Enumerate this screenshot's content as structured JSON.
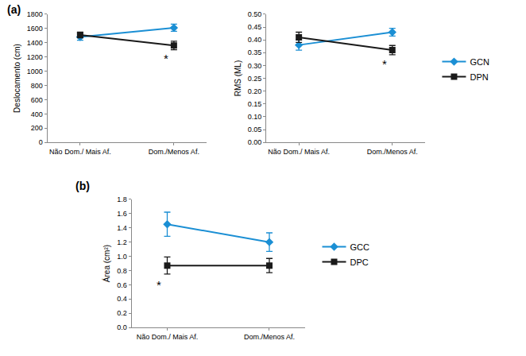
{
  "chart_data": [
    {
      "type": "line",
      "title": "(a)",
      "y_label": "Deslocamento (cm)",
      "categories": [
        "Não Dom./ Mais Af.",
        "Dom./Menos Af."
      ],
      "series": [
        {
          "color": "#1B8FD4",
          "marker": "diamond",
          "values": [
            1480,
            1610
          ],
          "errors": [
            45,
            50
          ]
        },
        {
          "color": "#1a1a1a",
          "marker": "square",
          "values": [
            1510,
            1360
          ],
          "errors": [
            40,
            60
          ]
        }
      ],
      "ylim": [
        0,
        1800
      ],
      "yticks": [
        0,
        200,
        400,
        600,
        800,
        1000,
        1200,
        1400,
        1600,
        1800
      ],
      "annotations": [
        {
          "text": "*",
          "x": 1,
          "y": 1295
        }
      ],
      "grid": false
    },
    {
      "type": "line",
      "y_label": "RMS (ML)",
      "categories": [
        "Não Dom./ Mais Af.",
        "Dom./Menos Af."
      ],
      "series": [
        {
          "name": "GCN",
          "color": "#1B8FD4",
          "marker": "diamond",
          "values": [
            0.38,
            0.43
          ],
          "errors": [
            0.02,
            0.015
          ]
        },
        {
          "name": "DPN",
          "color": "#1a1a1a",
          "marker": "square",
          "values": [
            0.41,
            0.36
          ],
          "errors": [
            0.02,
            0.018
          ]
        }
      ],
      "ylim": [
        0,
        0.5
      ],
      "yticks": [
        {
          "value": 0,
          "label": "0.00"
        },
        0.05,
        {
          "value": 0.1,
          "label": "0.10"
        },
        0.15,
        {
          "value": 0.2,
          "label": "0.20"
        },
        0.25,
        {
          "value": 0.3,
          "label": "0.30"
        },
        0.35,
        {
          "value": 0.4,
          "label": "0.40"
        },
        0.45,
        {
          "value": 0.5,
          "label": "0.50"
        }
      ],
      "annotations": [
        {
          "text": "*",
          "x": 1,
          "y": 0.338
        }
      ],
      "grid": false,
      "legend": "right"
    },
    {
      "type": "line",
      "title": "(b)",
      "y_label": "Área (cm²)",
      "categories": [
        "Não Dom./ Mais Af.",
        "Dom./Menos Af."
      ],
      "series": [
        {
          "name": "GCC",
          "color": "#1B8FD4",
          "marker": "diamond",
          "values": [
            1.45,
            1.2
          ],
          "errors": [
            0.17,
            0.13
          ]
        },
        {
          "name": "DPC",
          "color": "#1a1a1a",
          "marker": "square",
          "values": [
            0.87,
            0.87
          ],
          "errors": [
            0.12,
            0.1
          ]
        }
      ],
      "ylim": [
        0,
        1.8
      ],
      "yticks": [
        {
          "value": 0,
          "label": "0.0"
        },
        0.2,
        0.4,
        0.6,
        0.8,
        {
          "value": 1,
          "label": "1.0"
        },
        1.2,
        1.4,
        1.6,
        1.8
      ],
      "annotations": [
        {
          "text": "*",
          "x": 0,
          "y": 0.72
        }
      ],
      "grid": false,
      "legend": "right"
    }
  ]
}
